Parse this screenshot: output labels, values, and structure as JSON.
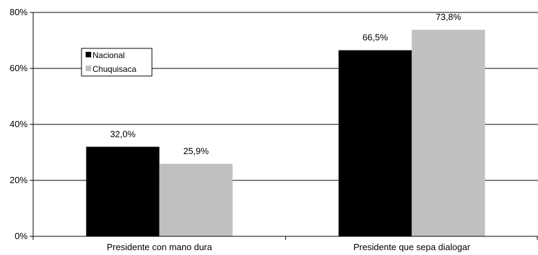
{
  "chart_data": {
    "type": "bar",
    "title": "",
    "xlabel": "",
    "ylabel": "",
    "categories": [
      "Presidente con mano dura",
      "Presidente que sepa dialogar"
    ],
    "series": [
      {
        "name": "Nacional",
        "values": [
          32.0,
          66.5
        ],
        "labels": [
          "32,0%",
          "66,5%"
        ],
        "color": "#000000"
      },
      {
        "name": "Chuquisaca",
        "values": [
          25.9,
          73.8
        ],
        "labels": [
          "25,9%",
          "73,8%"
        ],
        "color": "#c0c0c0"
      }
    ],
    "ylim": [
      0,
      80
    ],
    "yticks": [
      0,
      20,
      40,
      60,
      80
    ],
    "ytick_labels": [
      "0%",
      "20%",
      "40%",
      "60%",
      "80%"
    ],
    "grid": true,
    "legend_position": "top-left"
  }
}
